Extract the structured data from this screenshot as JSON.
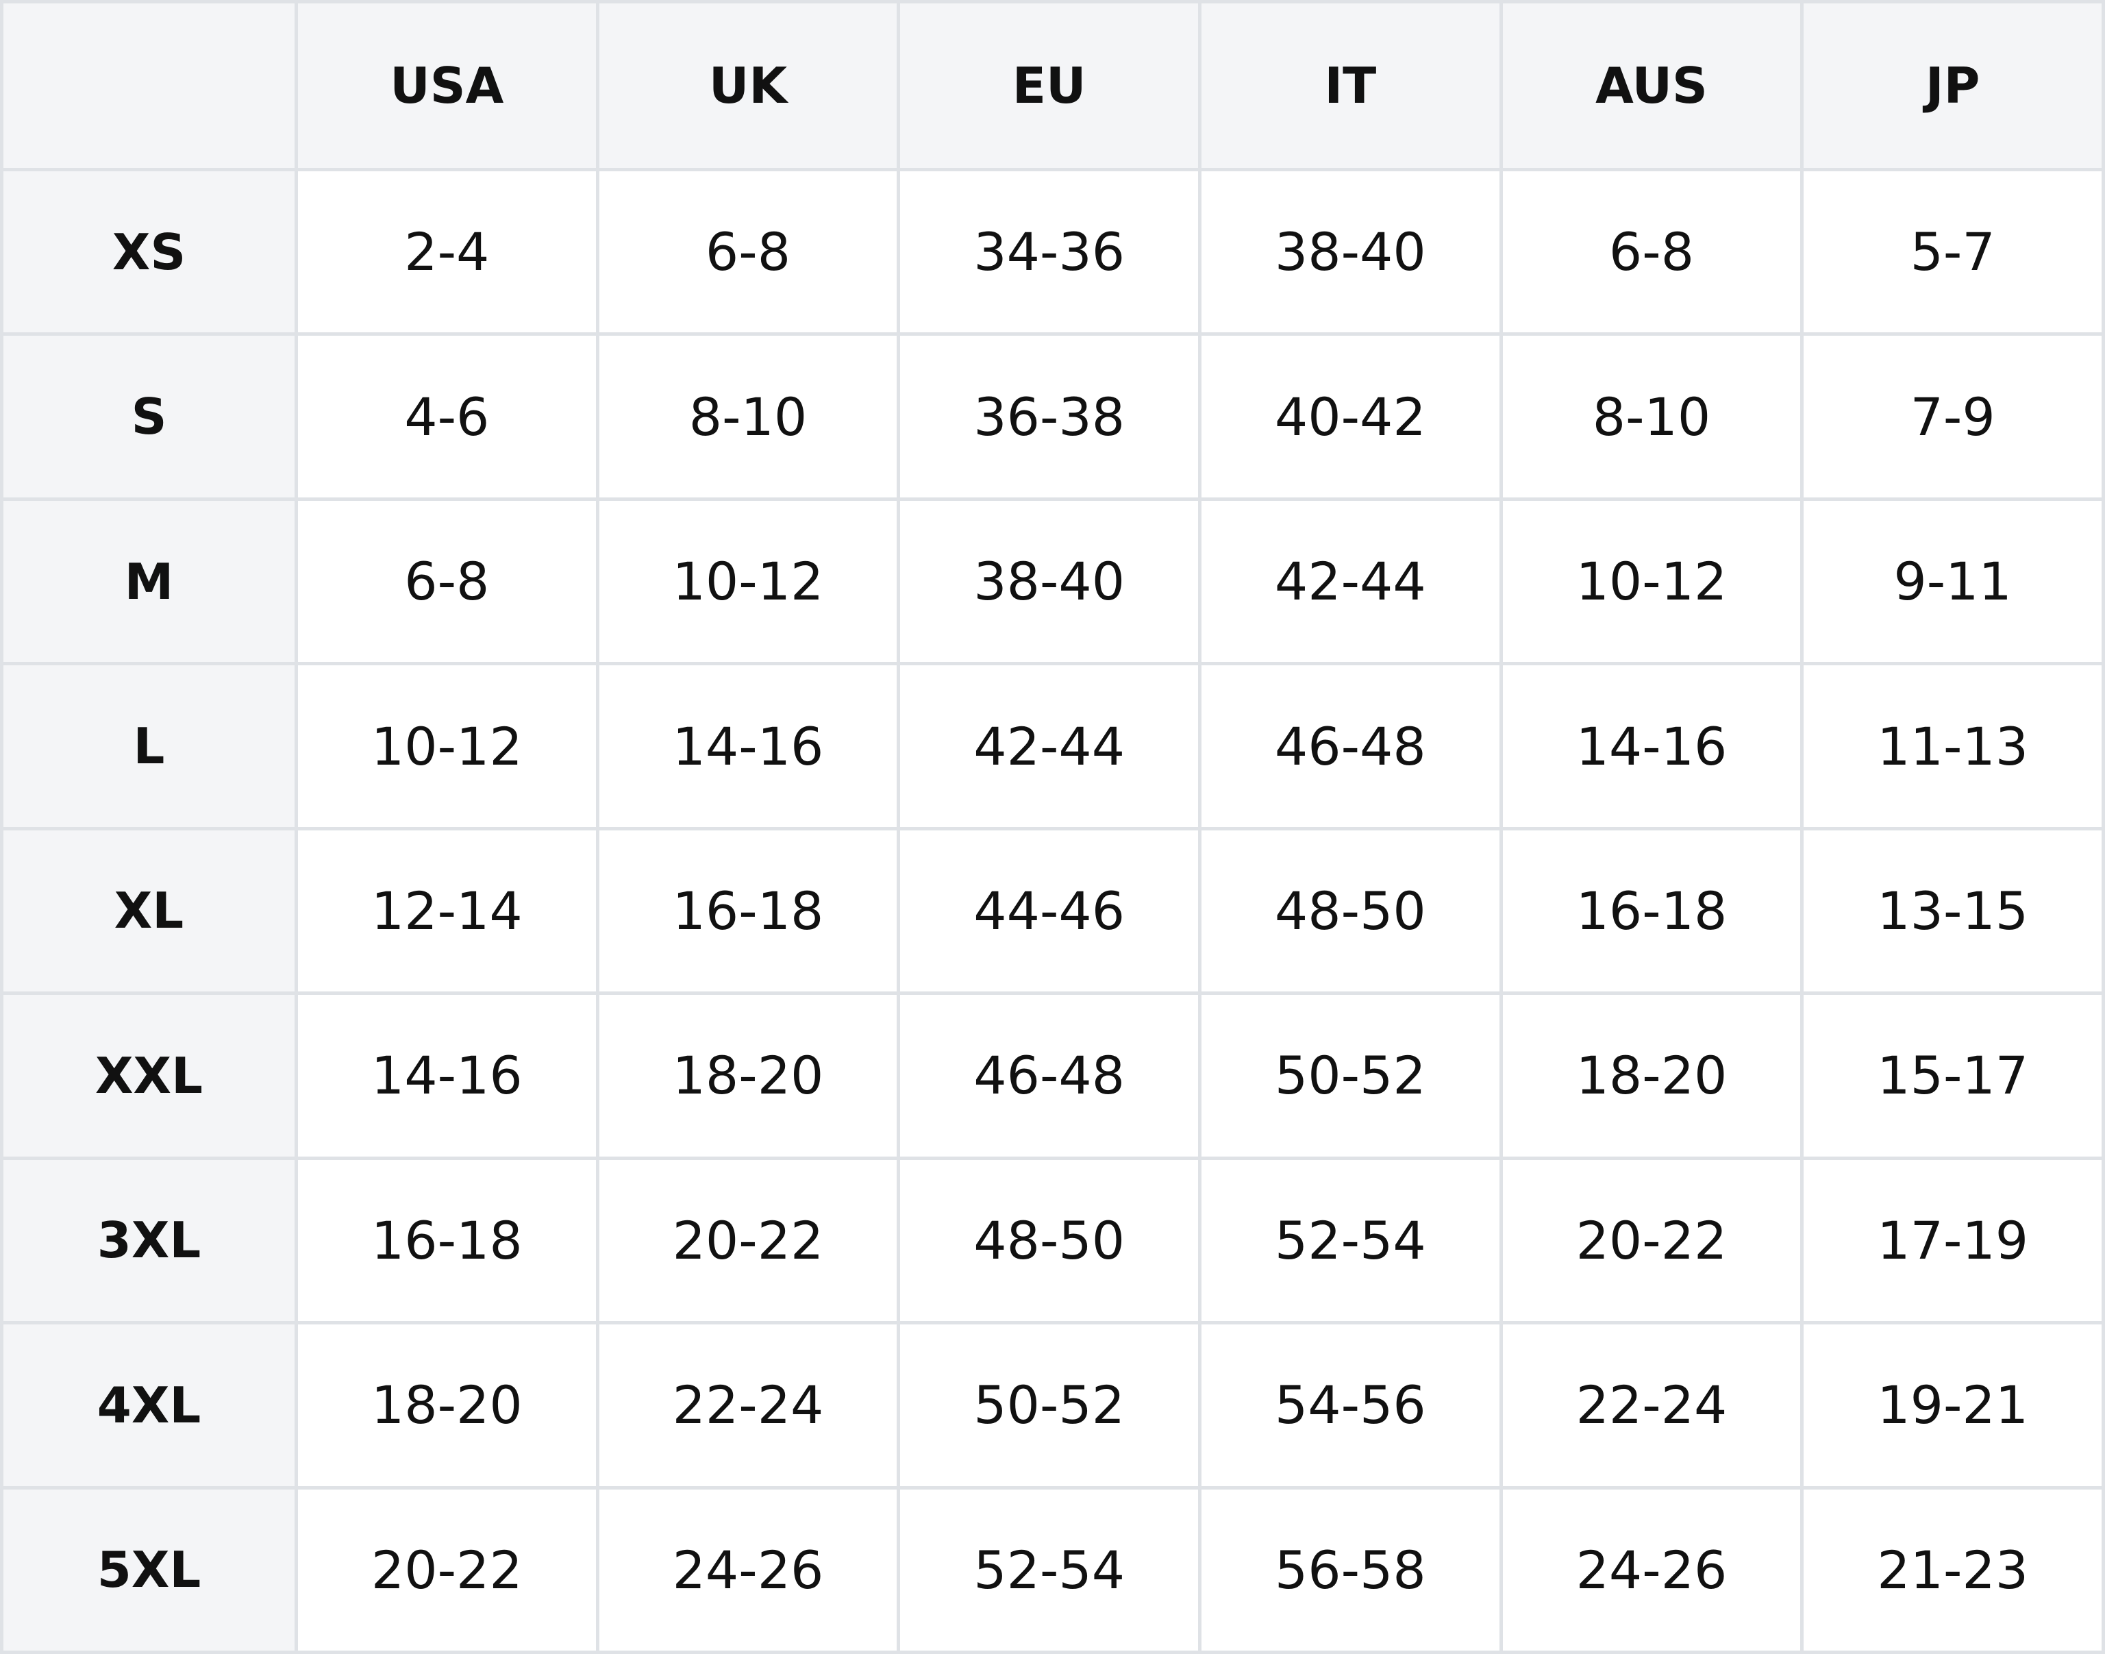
{
  "header": {
    "columns": [
      "USA",
      "UK",
      "EU",
      "IT",
      "AUS",
      "JP"
    ]
  },
  "rows": [
    {
      "size": "XS",
      "values": [
        "2-4",
        "6-8",
        "34-36",
        "38-40",
        "6-8",
        "5-7"
      ]
    },
    {
      "size": "S",
      "values": [
        "4-6",
        "8-10",
        "36-38",
        "40-42",
        "8-10",
        "7-9"
      ]
    },
    {
      "size": "M",
      "values": [
        "6-8",
        "10-12",
        "38-40",
        "42-44",
        "10-12",
        "9-11"
      ]
    },
    {
      "size": "L",
      "values": [
        "10-12",
        "14-16",
        "42-44",
        "46-48",
        "14-16",
        "11-13"
      ]
    },
    {
      "size": "XL",
      "values": [
        "12-14",
        "16-18",
        "44-46",
        "48-50",
        "16-18",
        "13-15"
      ]
    },
    {
      "size": "XXL",
      "values": [
        "14-16",
        "18-20",
        "46-48",
        "50-52",
        "18-20",
        "15-17"
      ]
    },
    {
      "size": "3XL",
      "values": [
        "16-18",
        "20-22",
        "48-50",
        "52-54",
        "20-22",
        "17-19"
      ]
    },
    {
      "size": "4XL",
      "values": [
        "18-20",
        "22-24",
        "50-52",
        "54-56",
        "22-24",
        "19-21"
      ]
    },
    {
      "size": "5XL",
      "values": [
        "20-22",
        "24-26",
        "52-54",
        "56-58",
        "24-26",
        "21-23"
      ]
    }
  ]
}
